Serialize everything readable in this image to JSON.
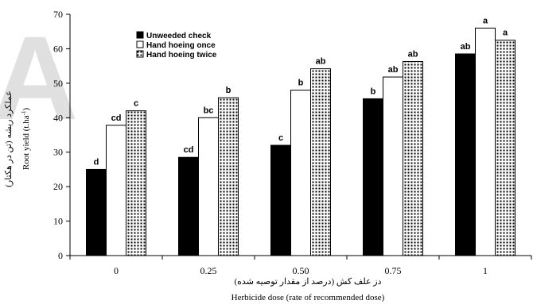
{
  "chart_data": {
    "type": "bar",
    "categories": [
      "0",
      "0.25",
      "0.50",
      "0.75",
      "1"
    ],
    "series": [
      {
        "name": "Unweeded check",
        "fill": "solid",
        "color": "#000000",
        "values": [
          25,
          28.5,
          32,
          45.5,
          58.5
        ],
        "labels": [
          "d",
          "cd",
          "c",
          "b",
          "ab"
        ]
      },
      {
        "name": "Hand hoeing once",
        "fill": "white",
        "color": "#ffffff",
        "values": [
          37.8,
          40,
          48,
          51.8,
          66
        ],
        "labels": [
          "cd",
          "bc",
          "b",
          "ab",
          "a"
        ]
      },
      {
        "name": "Hand hoeing twice",
        "fill": "dotted",
        "color": "#000000",
        "values": [
          42,
          45.8,
          54.2,
          56.3,
          62.5
        ],
        "labels": [
          "c",
          "b",
          "ab",
          "ab",
          "a"
        ]
      }
    ],
    "ylim": [
      0,
      70
    ],
    "yticks": [
      0,
      10,
      20,
      30,
      40,
      50,
      60,
      70
    ],
    "xlabel": "Herbicide dose (rate of recommended dose)",
    "xlabel_fa": "دز علف کش (درصد از مقدار توصیه شده)",
    "ylabel_fa": "عملکرد ریشه (تن در هکتار)",
    "ylabel_en": "Root yield (t.ha",
    "ylabel_en_sup": "-1",
    "ylabel_en_end": ")",
    "legend_position": "top-left",
    "grid": false,
    "watermark": "A"
  }
}
